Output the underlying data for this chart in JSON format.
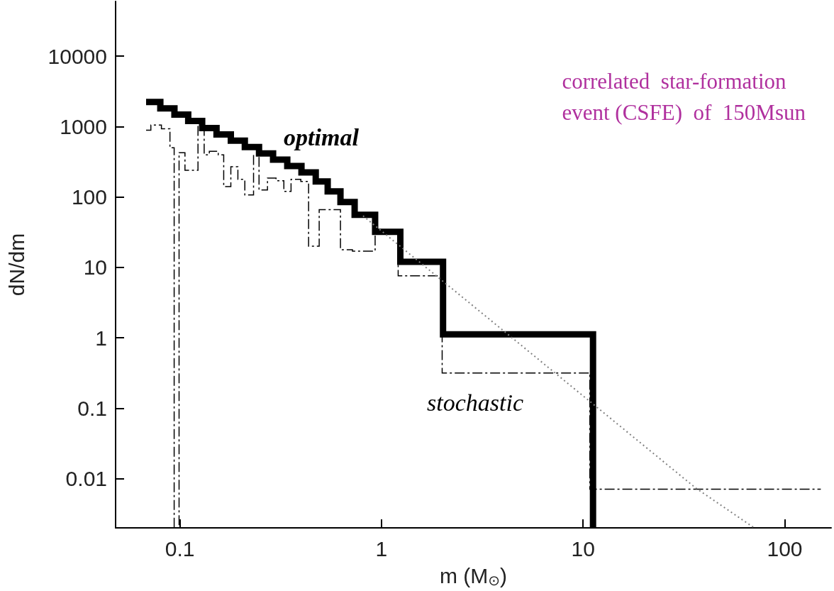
{
  "chart_data": {
    "type": "step",
    "xlabel": "m (M$_{⊙}$)",
    "ylabel": "dN/dm",
    "log": "xy",
    "xlim": [
      0.048,
      170
    ],
    "ylim": [
      0.002,
      60000
    ],
    "xticks": [
      0.1,
      1,
      10,
      100
    ],
    "yticks": [
      0.01,
      0.1,
      1,
      10,
      100,
      1000,
      10000
    ],
    "series": [
      {
        "color": "#000000",
        "line_style": "solid",
        "x": [
          0.068,
          0.08,
          0.094,
          0.11,
          0.129,
          0.152,
          0.179,
          0.21,
          0.247,
          0.29,
          0.341,
          0.401,
          0.472,
          0.541,
          0.626,
          0.736,
          0.93,
          1.24,
          2.02,
          11.2
        ],
        "values": [
          2240,
          1820,
          1480,
          1200,
          955,
          776,
          631,
          513,
          417,
          339,
          275,
          224,
          166,
          120,
          85,
          56,
          32,
          12,
          1.12,
          0.002
        ]
      },
      {
        "color": "#000000",
        "line_style": "dashed",
        "x": [
          0.068,
          0.0718,
          0.081,
          0.0893,
          0.0937,
          0.0991,
          0.106,
          0.123,
          0.132,
          0.14,
          0.155,
          0.165,
          0.179,
          0.194,
          0.21,
          0.232,
          0.247,
          0.272,
          0.3,
          0.328,
          0.356,
          0.398,
          0.435,
          0.491,
          0.626,
          0.718,
          0.93,
          1.21,
          2.0,
          10.8,
          151
        ],
        "values": [
          891,
          1050,
          933,
          500,
          0.002,
          427,
          240,
          1050,
          398,
          447,
          398,
          141,
          269,
          178,
          107,
          398,
          126,
          186,
          170,
          120,
          178,
          166,
          20,
          66,
          17.8,
          17,
          30,
          7.6,
          0.316,
          0.0071,
          0.0071
        ]
      },
      {
        "type": "line",
        "color": "#808080",
        "line_style": "dotted",
        "x": [
          0.81,
          36.1,
          70.6
        ],
        "values": [
          54,
          0.0074,
          0.002
        ]
      }
    ],
    "annotations": [
      "optimal",
      "stochastic",
      "correlated  star-formation\nevent (CSFE)  of  150Msun"
    ]
  }
}
